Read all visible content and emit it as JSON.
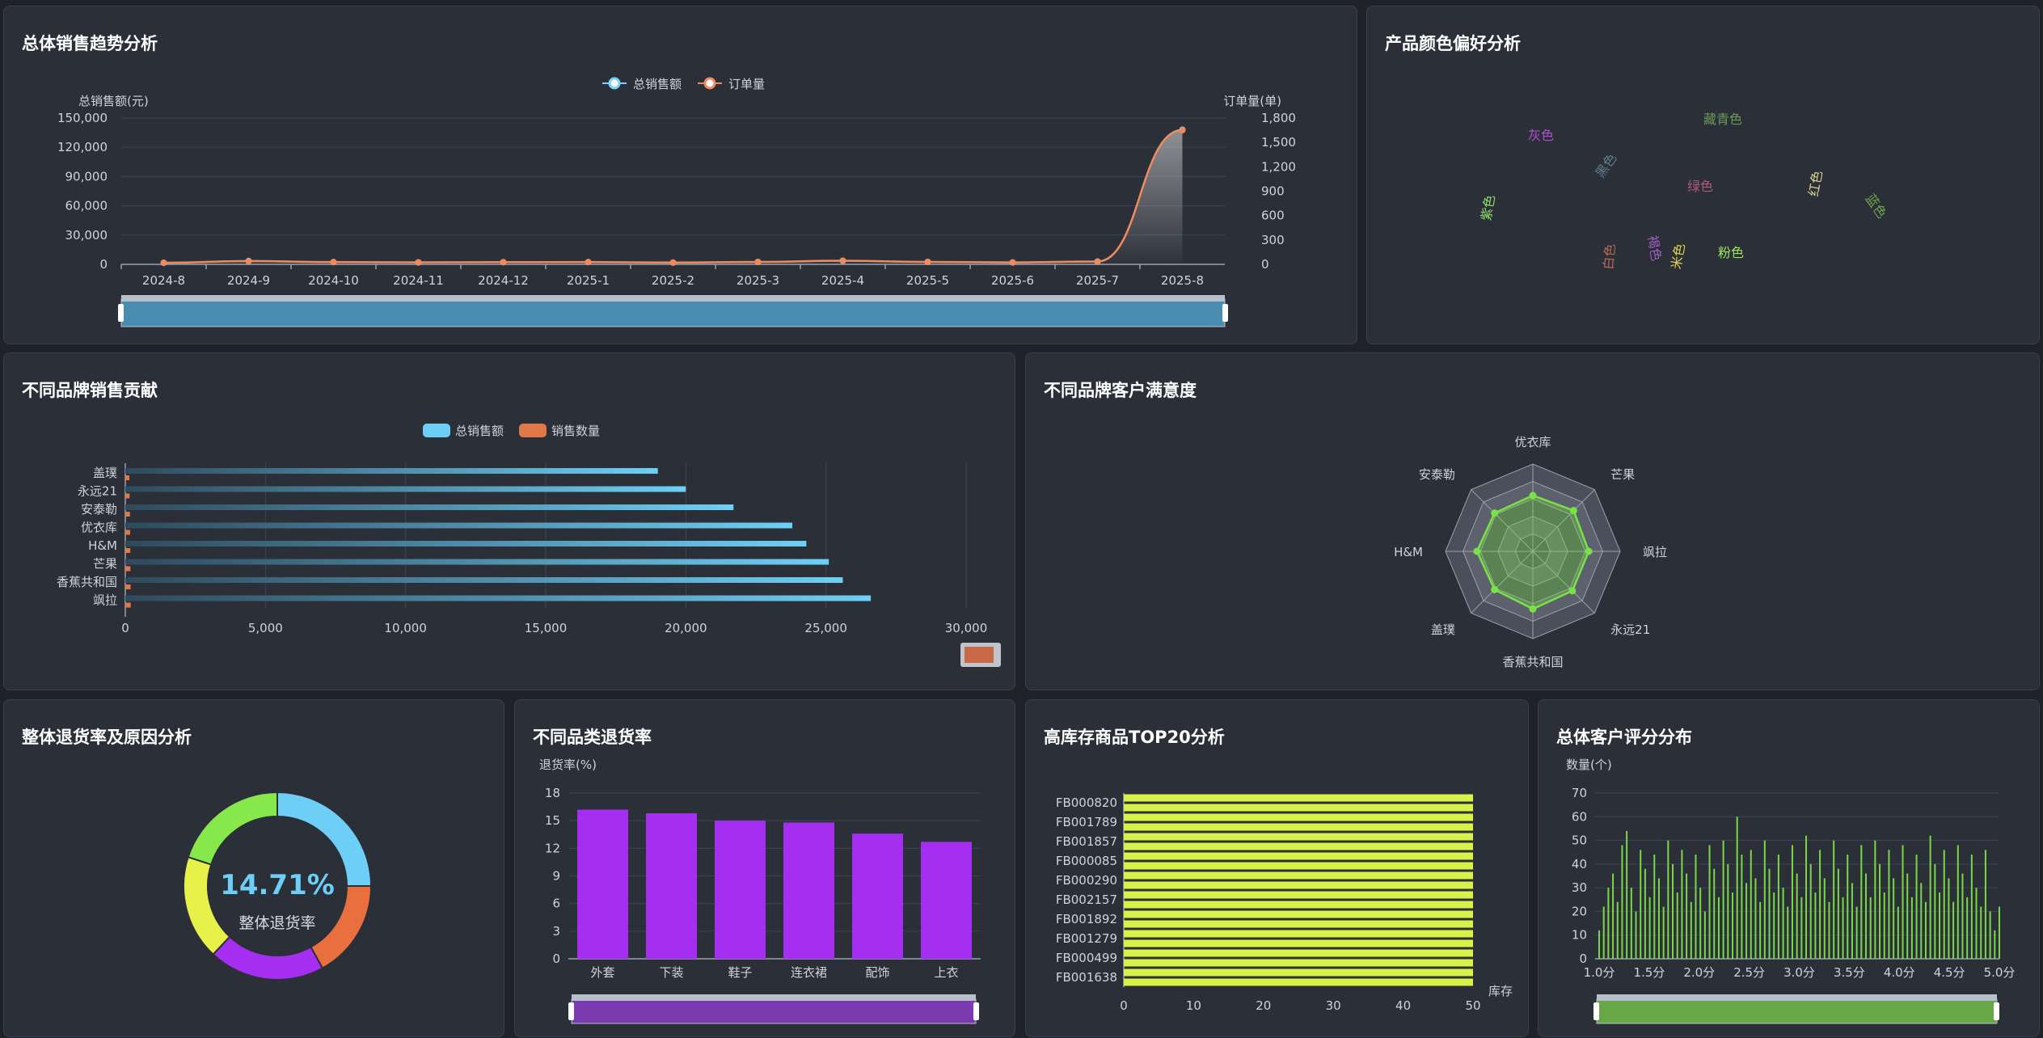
{
  "panels": {
    "trend": "总体销售趋势分析",
    "color": "产品颜色偏好分析",
    "brand": "不同品牌销售贡献",
    "satisfaction": "不同品牌客户满意度",
    "returns": "整体退货率及原因分析",
    "category_returns": "不同品类退货率",
    "inventory": "高库存商品TOP20分析",
    "rating": "总体客户评分分布"
  },
  "colors": {
    "bg": "#1f2229",
    "panel": "#2b2f38",
    "sales_line": "#7ad3f5",
    "order_line": "#f08a5d",
    "brand_sales": "#6ecff6",
    "brand_qty": "#e0784a",
    "radar_fill": "#79e346",
    "category_bar": "#a52ef0",
    "inventory_bar": "#d9f24a",
    "rating_bar": "#7ad846"
  },
  "charts": {
    "trend": {
      "type": "line",
      "legend": [
        "总销售额",
        "订单量"
      ],
      "ylabel_left": "总销售额(元)",
      "ylabel_right": "订单量(单)",
      "y_left_ticks": [
        "0",
        "30,000",
        "60,000",
        "90,000",
        "120,000",
        "150,000"
      ],
      "y_right_ticks": [
        "0",
        "300",
        "600",
        "900",
        "1,200",
        "1,500",
        "1,800"
      ],
      "ylim_left": [
        0,
        150000
      ],
      "ylim_right": [
        0,
        1800
      ],
      "categories": [
        "2024-8",
        "2024-9",
        "2024-10",
        "2024-11",
        "2024-12",
        "2025-1",
        "2025-2",
        "2025-3",
        "2025-4",
        "2025-5",
        "2025-6",
        "2025-7",
        "2025-8"
      ],
      "series": [
        {
          "name": "总销售额",
          "axis": "left",
          "values": [
            1500,
            3500,
            2300,
            2000,
            2200,
            2300,
            1800,
            2400,
            3600,
            2500,
            1900,
            2800,
            138000
          ]
        },
        {
          "name": "订单量",
          "axis": "right",
          "values": [
            20,
            40,
            28,
            25,
            27,
            28,
            22,
            30,
            45,
            30,
            24,
            35,
            1650
          ]
        }
      ]
    },
    "wordcloud": {
      "type": "wordcloud",
      "words": [
        {
          "text": "绿色",
          "weight": 1.0,
          "color": "#b05a7a"
        },
        {
          "text": "红色",
          "weight": 0.95,
          "color": "#d8d18a"
        },
        {
          "text": "黑色",
          "weight": 0.9,
          "color": "#5f7f8c"
        },
        {
          "text": "藏青色",
          "weight": 0.6,
          "color": "#6a9a5a"
        },
        {
          "text": "灰色",
          "weight": 0.6,
          "color": "#b24fd0"
        },
        {
          "text": "紫色",
          "weight": 0.55,
          "color": "#8ee06a"
        },
        {
          "text": "粉色",
          "weight": 0.55,
          "color": "#9ae85a"
        },
        {
          "text": "蓝色",
          "weight": 0.5,
          "color": "#6fa54a"
        },
        {
          "text": "白色",
          "weight": 0.5,
          "color": "#b56a55"
        },
        {
          "text": "米色",
          "weight": 0.15,
          "color": "#e0d050"
        },
        {
          "text": "褐色",
          "weight": 0.12,
          "color": "#a060c0"
        }
      ]
    },
    "brand": {
      "type": "bar",
      "legend": [
        "总销售额",
        "销售数量"
      ],
      "categories": [
        "盖璞",
        "永远21",
        "安泰勒",
        "优衣库",
        "H&M",
        "芒果",
        "香蕉共和国",
        "飒拉"
      ],
      "x_ticks": [
        "0",
        "5,000",
        "10,000",
        "15,000",
        "20,000",
        "25,000",
        "30,000"
      ],
      "xlim": [
        0,
        30000
      ],
      "series": [
        {
          "name": "总销售额",
          "values": [
            19000,
            20000,
            21700,
            23800,
            24300,
            25100,
            25600,
            26600
          ]
        },
        {
          "name": "销售数量",
          "values": [
            150,
            160,
            170,
            180,
            185,
            190,
            195,
            200
          ]
        }
      ]
    },
    "radar": {
      "type": "radar",
      "indicators": [
        "优衣库",
        "芒果",
        "飒拉",
        "永远21",
        "香蕉共和国",
        "盖璞",
        "H&M",
        "安泰勒"
      ],
      "max": 5,
      "values": [
        3.2,
        3.3,
        3.2,
        3.2,
        3.3,
        3.1,
        3.2,
        3.1
      ]
    },
    "donut": {
      "type": "pie",
      "value_text": "14.71%",
      "label": "整体退货率",
      "slices": [
        {
          "value": 25,
          "color": "#6ecff6"
        },
        {
          "value": 17,
          "color": "#e96f3f"
        },
        {
          "value": 20,
          "color": "#a52ef0"
        },
        {
          "value": 18,
          "color": "#e6f24a"
        },
        {
          "value": 20,
          "color": "#86e84a"
        }
      ]
    },
    "category": {
      "type": "bar",
      "ylabel": "退货率(%)",
      "y_ticks": [
        "0",
        "3",
        "6",
        "9",
        "12",
        "15",
        "18"
      ],
      "ylim": [
        0,
        18
      ],
      "categories": [
        "外套",
        "下装",
        "鞋子",
        "连衣裙",
        "配饰",
        "上衣"
      ],
      "values": [
        16.2,
        15.8,
        15.0,
        14.8,
        13.6,
        12.7
      ]
    },
    "inventory": {
      "type": "bar",
      "xlabel": "库存",
      "x_ticks": [
        "0",
        "10",
        "20",
        "30",
        "40",
        "50"
      ],
      "xlim": [
        0,
        50
      ],
      "y_labels": [
        "FB000820",
        "FB001789",
        "FB001857",
        "FB000085",
        "FB000290",
        "FB002157",
        "FB001892",
        "FB001279",
        "FB000499",
        "FB001638"
      ],
      "bar_count": 20,
      "value": 50
    },
    "rating": {
      "type": "bar",
      "ylabel": "数量(个)",
      "y_ticks": [
        "0",
        "10",
        "20",
        "30",
        "40",
        "50",
        "60",
        "70"
      ],
      "ylim": [
        0,
        70
      ],
      "x_ticks": [
        "1.0分",
        "1.5分",
        "2.0分",
        "2.5分",
        "3.0分",
        "3.5分",
        "4.0分",
        "4.5分",
        "5.0分"
      ],
      "xlim": [
        1.0,
        5.0
      ],
      "values": [
        12,
        22,
        30,
        36,
        24,
        48,
        54,
        30,
        20,
        46,
        38,
        26,
        44,
        34,
        22,
        50,
        40,
        28,
        46,
        36,
        24,
        44,
        30,
        20,
        48,
        38,
        26,
        50,
        40,
        28,
        60,
        44,
        32,
        46,
        34,
        24,
        50,
        38,
        28,
        44,
        30,
        22,
        48,
        36,
        26,
        52,
        40,
        28,
        46,
        34,
        24,
        50,
        38,
        26,
        44,
        32,
        22,
        48,
        36,
        26,
        50,
        40,
        28,
        46,
        34,
        22,
        48,
        36,
        26,
        44,
        32,
        24,
        52,
        40,
        28,
        46,
        34,
        24,
        48,
        36,
        26,
        44,
        30,
        22,
        46,
        20,
        12,
        22
      ]
    }
  }
}
